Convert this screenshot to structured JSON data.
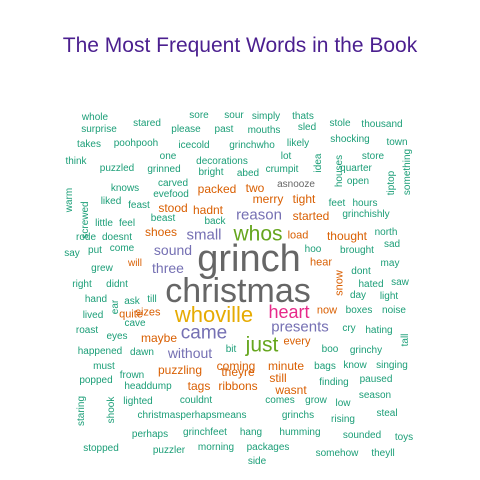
{
  "title": "The Most Frequent Words in the Book",
  "palette": {
    "teal": "#1b9e77",
    "orange": "#d95f02",
    "purple": "#7570b3",
    "magenta": "#e7298a",
    "green": "#66a61e",
    "gold": "#e6ab02",
    "gray": "#666666"
  },
  "words": [
    "grinch",
    "christmas",
    "whoville",
    "whos",
    "came",
    "just",
    "heart",
    "presents",
    "reason",
    "small",
    "sound",
    "three",
    "without",
    "shoes",
    "thought",
    "load",
    "hear",
    "started",
    "stood",
    "hadnt",
    "tight",
    "merry",
    "two",
    "packed",
    "asnooze",
    "crumpit",
    "decorations",
    "icecold",
    "grinchwho",
    "likely",
    "puzzled",
    "grinned",
    "carved",
    "bright",
    "abed",
    "lot",
    "feast",
    "beast",
    "back",
    "liked",
    "knows",
    "evefood",
    "grinchishly",
    "hours",
    "feet",
    "quarter",
    "open",
    "store",
    "town",
    "shocking",
    "thousand",
    "stole",
    "sled",
    "thats",
    "simply",
    "sour",
    "sore",
    "mouths",
    "past",
    "please",
    "stared",
    "whole",
    "surprise",
    "takes",
    "poohpooh",
    "one",
    "think",
    "warm",
    "screwed",
    "little",
    "feel",
    "rode",
    "doesnt",
    "say",
    "put",
    "come",
    "will",
    "grew",
    "right",
    "didnt",
    "hand",
    "ask",
    "till",
    "lived",
    "quite",
    "sizes",
    "roast",
    "cave",
    "eyes",
    "happened",
    "dawn",
    "must",
    "frown",
    "popped",
    "headdump",
    "lighted",
    "christmasperhapsmeans",
    "perhaps",
    "grinchfeet",
    "hang",
    "humming",
    "stopped",
    "puzzler",
    "morning",
    "packages",
    "side",
    "somehow",
    "theyll",
    "toys",
    "sounded",
    "steal",
    "season",
    "rising",
    "low",
    "grow",
    "grinchs",
    "comes",
    "wasnt",
    "still",
    "minute",
    "theyre",
    "ribbons",
    "couldnt",
    "tags",
    "coming",
    "puzzling",
    "maybe",
    "bit",
    "every",
    "finding",
    "paused",
    "singing",
    "know",
    "bags",
    "boo",
    "grinchy",
    "tall",
    "hating",
    "cry",
    "boxes",
    "noise",
    "now",
    "snow",
    "day",
    "light",
    "hated",
    "saw",
    "dont",
    "may",
    "hoo",
    "brought",
    "sad",
    "north",
    "staring",
    "shook",
    "ear",
    "tiptop",
    "something",
    "houses",
    "idea"
  ]
}
